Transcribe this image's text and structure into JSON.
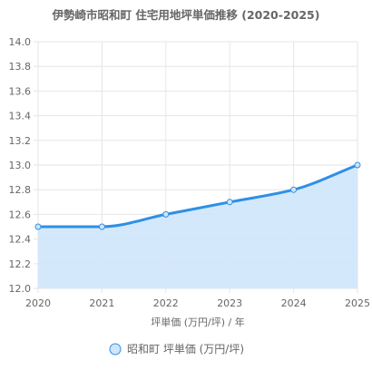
{
  "chart_data": {
    "type": "area",
    "title": "伊勢崎市昭和町 住宅用地坪単価推移 (2020-2025)",
    "xlabel": "坪単価 (万円/坪) / 年",
    "ylabel": "",
    "x": [
      "2020",
      "2021",
      "2022",
      "2023",
      "2024",
      "2025"
    ],
    "series": [
      {
        "name": "昭和町 坪単価 (万円/坪)",
        "values": [
          12.5,
          12.5,
          12.6,
          12.7,
          12.8,
          13.0
        ]
      }
    ],
    "ylim": [
      12.0,
      14.0
    ],
    "yticks": [
      "14.0",
      "13.8",
      "13.6",
      "13.4",
      "13.2",
      "13.0",
      "12.8",
      "12.6",
      "12.4",
      "12.2",
      "12.0"
    ],
    "grid": true,
    "legend_position": "bottom",
    "colors": {
      "line": "#2f8fe5",
      "fill": "#cfe5fb",
      "grid": "#e6e6e6",
      "text": "#666666"
    }
  }
}
